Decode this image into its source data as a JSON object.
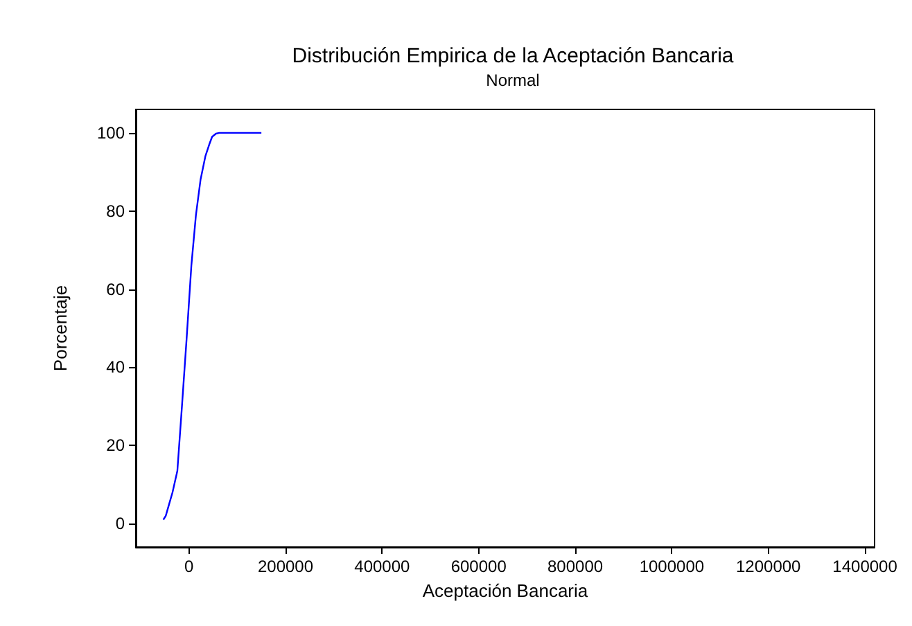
{
  "chart_data": {
    "type": "line",
    "title": "Distribución Empirica de la Aceptación Bancaria",
    "subtitle": "Normal",
    "xlabel": "Aceptación Bancaria",
    "ylabel": "Porcentaje",
    "x": [
      -53000,
      -48000,
      -41000,
      -34000,
      -24000,
      -14500,
      -5000,
      5000,
      14500,
      24000,
      34000,
      42000,
      48000,
      56000,
      63000,
      150000
    ],
    "series": [
      {
        "color": "#0000ff",
        "values": [
          1,
          2,
          5,
          8,
          13.5,
          30,
          47,
          66,
          79,
          88,
          94,
          97,
          99,
          99.8,
          100,
          100
        ]
      }
    ],
    "xlim": [
      -110000,
      1420000
    ],
    "xticks": [
      0,
      200000,
      400000,
      600000,
      800000,
      1000000,
      1200000,
      1400000
    ],
    "ylim": [
      -6,
      106
    ],
    "yticks": [
      0,
      20,
      40,
      60,
      80,
      100
    ],
    "marker": "none",
    "line_style": "solid"
  }
}
